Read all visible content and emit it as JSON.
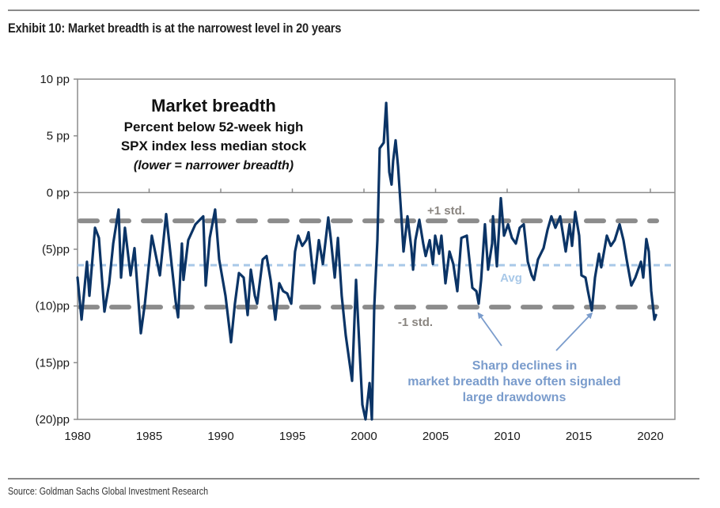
{
  "header": {
    "title": "Exhibit 10: Market breadth is at the narrowest level in 20 years"
  },
  "footer": {
    "source": "Source: Goldman Sachs Global Investment Research"
  },
  "colors": {
    "series": "#0b3466",
    "std_lines": "#8c8c8c",
    "avg_line": "#a8c8e8",
    "std_label": "#8a8580",
    "avg_label": "#a8c8e8",
    "annotation": "#7a9ccc",
    "axis": "#8c8c8c"
  },
  "chart_data": {
    "type": "line",
    "title": "Market breadth",
    "subtitle_lines": [
      "Percent below 52-week high",
      "SPX index less median stock"
    ],
    "note": "(lower = narrower breadth)",
    "xlabel": "",
    "ylabel": "",
    "xlim": [
      1980,
      2022
    ],
    "ylim": [
      -20,
      10
    ],
    "x_ticks": [
      1980,
      1985,
      1990,
      1995,
      2000,
      2005,
      2010,
      2015,
      2020
    ],
    "x_tick_labels": [
      "1980",
      "1985",
      "1990",
      "1995",
      "2000",
      "2005",
      "2010",
      "2015",
      "2020"
    ],
    "y_ticks": [
      10,
      5,
      0,
      -5,
      -10,
      -15,
      -20
    ],
    "y_tick_labels": [
      "10 pp",
      "5 pp",
      "0 pp",
      "(5)pp",
      "(10)pp",
      "(15)pp",
      "(20)pp"
    ],
    "grid": false,
    "reference_lines": [
      {
        "name": "+1 std.",
        "label": "+1 std.",
        "value": -2.5,
        "style": "dashed-thick"
      },
      {
        "name": "Avg",
        "label": "Avg",
        "value": -6.4,
        "style": "dashed-thin"
      },
      {
        "name": "-1 std.",
        "label": "-1 std.",
        "value": -10.1,
        "style": "dashed-thick"
      }
    ],
    "annotation": {
      "lines": [
        "Sharp declines in",
        "market breadth have often signaled",
        "large drawdowns"
      ],
      "arrow_targets": [
        {
          "x": 2008.0,
          "y": -10.1
        },
        {
          "x": 2015.9,
          "y": -10.1
        }
      ]
    },
    "series": [
      {
        "name": "Market breadth",
        "x": [
          1980.0,
          1980.28,
          1980.66,
          1980.83,
          1981.22,
          1981.49,
          1981.88,
          1982.21,
          1982.49,
          1982.87,
          1983.04,
          1983.31,
          1983.7,
          1983.98,
          1984.42,
          1984.7,
          1985.19,
          1985.75,
          1986.19,
          1986.85,
          1987.02,
          1987.29,
          1987.4,
          1987.73,
          1988.23,
          1988.78,
          1988.95,
          1989.23,
          1989.61,
          1989.89,
          1990.33,
          1990.72,
          1990.99,
          1991.27,
          1991.6,
          1991.88,
          1992.1,
          1992.38,
          1992.54,
          1992.93,
          1993.2,
          1993.48,
          1993.81,
          1994.09,
          1994.36,
          1994.64,
          1994.92,
          1995.19,
          1995.41,
          1995.69,
          1995.97,
          1996.13,
          1996.52,
          1996.85,
          1997.13,
          1997.51,
          1997.68,
          1997.96,
          1998.18,
          1998.45,
          1998.73,
          1999.17,
          1999.45,
          1999.61,
          1999.89,
          2000.11,
          2000.39,
          2000.55,
          2000.72,
          2000.94,
          2001.1,
          2001.38,
          2001.55,
          2001.77,
          2001.93,
          2002.04,
          2002.21,
          2002.38,
          2002.6,
          2002.76,
          2003.04,
          2003.31,
          2003.43,
          2003.59,
          2003.87,
          2004.14,
          2004.31,
          2004.59,
          2004.81,
          2004.97,
          2005.25,
          2005.41,
          2005.69,
          2005.97,
          2006.24,
          2006.52,
          2006.8,
          2007.18,
          2007.57,
          2007.85,
          2008.01,
          2008.18,
          2008.45,
          2008.67,
          2008.95,
          2009.01,
          2009.28,
          2009.56,
          2009.78,
          2010.06,
          2010.33,
          2010.61,
          2010.88,
          2011.16,
          2011.44,
          2011.71,
          2011.88,
          2012.15,
          2012.54,
          2012.82,
          2013.09,
          2013.37,
          2013.7,
          2014.09,
          2014.36,
          2014.53,
          2014.75,
          2015.03,
          2015.19,
          2015.47,
          2015.64,
          2015.91,
          2016.13,
          2016.41,
          2016.57,
          2016.96,
          2017.24,
          2017.51,
          2017.85,
          2018.12,
          2018.34,
          2018.67,
          2018.95,
          2019.34,
          2019.5,
          2019.72,
          2019.89,
          2020.06,
          2020.28,
          2020.39
        ],
        "values": [
          -7.5,
          -11.2,
          -6.1,
          -9.1,
          -3.1,
          -4.0,
          -10.5,
          -8.0,
          -4.5,
          -1.5,
          -7.5,
          -3.1,
          -7.3,
          -4.9,
          -12.4,
          -9.8,
          -3.8,
          -7.3,
          -1.9,
          -9.6,
          -11.0,
          -4.5,
          -7.7,
          -4.2,
          -2.8,
          -2.1,
          -8.2,
          -4.0,
          -1.5,
          -5.9,
          -9.1,
          -13.2,
          -9.8,
          -7.1,
          -7.5,
          -10.8,
          -6.8,
          -9.1,
          -9.8,
          -5.9,
          -5.6,
          -7.7,
          -11.2,
          -8.0,
          -8.7,
          -8.9,
          -9.8,
          -5.2,
          -3.8,
          -4.7,
          -4.2,
          -3.5,
          -8.0,
          -4.2,
          -6.3,
          -2.2,
          -4.0,
          -7.5,
          -4.0,
          -9.1,
          -12.6,
          -16.6,
          -7.7,
          -11.7,
          -18.7,
          -20.0,
          -16.8,
          -20.0,
          -10.1,
          -4.2,
          3.9,
          4.4,
          7.9,
          1.8,
          0.7,
          2.8,
          4.6,
          2.3,
          -1.9,
          -5.2,
          -2.1,
          -4.9,
          -6.8,
          -4.2,
          -2.4,
          -4.5,
          -5.6,
          -4.2,
          -6.3,
          -3.8,
          -5.4,
          -3.8,
          -8.0,
          -5.2,
          -6.3,
          -8.7,
          -4.0,
          -3.8,
          -8.4,
          -8.7,
          -9.8,
          -7.7,
          -2.8,
          -6.8,
          -4.5,
          -2.1,
          -6.5,
          -0.5,
          -3.8,
          -2.8,
          -4.0,
          -4.5,
          -3.1,
          -2.8,
          -6.1,
          -7.3,
          -7.7,
          -5.9,
          -4.9,
          -3.3,
          -2.1,
          -3.1,
          -2.1,
          -5.2,
          -2.8,
          -4.7,
          -1.7,
          -3.8,
          -7.3,
          -7.5,
          -8.7,
          -10.4,
          -7.5,
          -5.4,
          -6.6,
          -3.8,
          -4.7,
          -4.2,
          -2.8,
          -4.2,
          -5.9,
          -8.2,
          -7.5,
          -6.1,
          -7.5,
          -4.1,
          -5.2,
          -8.7,
          -11.2,
          -10.8
        ]
      }
    ]
  }
}
